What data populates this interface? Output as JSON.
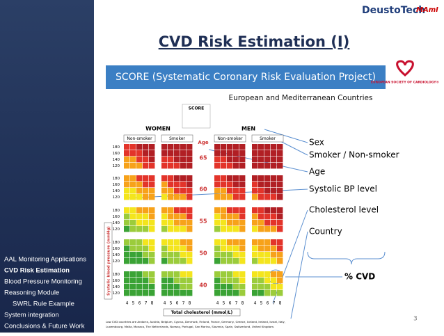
{
  "header": {
    "logos": [
      "DeustoTech",
      "MAmI"
    ],
    "esc_logo": "EUROPEAN SOCIETY OF CARDIOLOGY®"
  },
  "title": "CVD Risk Estimation (I)",
  "banner": "SCORE (Systematic Coronary Risk Evaluation Project)",
  "subtitle": "European and Mediterranean Countries",
  "score_chart": {
    "name": "SCORE",
    "sexes": [
      "WOMEN",
      "MEN"
    ],
    "smoking": [
      "Non-smoker",
      "Smoker"
    ],
    "age_label": "Age",
    "ages": [
      "65",
      "60",
      "55",
      "50",
      "40"
    ],
    "sbp": [
      "180",
      "160",
      "140",
      "120"
    ],
    "sbp_axis": "Systolic blood pressure (mmHg)",
    "cholesterol": [
      "4",
      "5",
      "6",
      "7",
      "8"
    ],
    "cholesterol_axis": "Total cholesterol (mmol/L)",
    "footnote": [
      "Low CVD countries are Andorra, Austria, Belgium, Cyprus, Denmark, Finland, France, Germany, Greece, Iceland, Ireland, Israel, Italy,",
      "Luxembourg, Malta, Monaco, The Netherlands, Norway, Portugal, San Marino, Slovenia, Spain, Switzerland, United Kingdom."
    ]
  },
  "annotations": [
    "Sex",
    "Smoker / Non-smoker",
    "Age",
    "Systolic BP level",
    "Cholesterol level",
    "Country",
    "% CVD"
  ],
  "sidebar": [
    {
      "label": "AAL Monitoring Applications",
      "active": false,
      "indent": false
    },
    {
      "label": "CVD Risk Estimation",
      "active": true,
      "indent": false
    },
    {
      "label": "Blood Pressure Monitoring",
      "active": false,
      "indent": false
    },
    {
      "label": "Reasoning Module",
      "active": false,
      "indent": false
    },
    {
      "label": "SWRL Rule Example",
      "active": false,
      "indent": true
    },
    {
      "label": "System integration",
      "active": false,
      "indent": false
    },
    {
      "label": "Conclusions & Future Work",
      "active": false,
      "indent": false
    }
  ],
  "page_number": "3"
}
